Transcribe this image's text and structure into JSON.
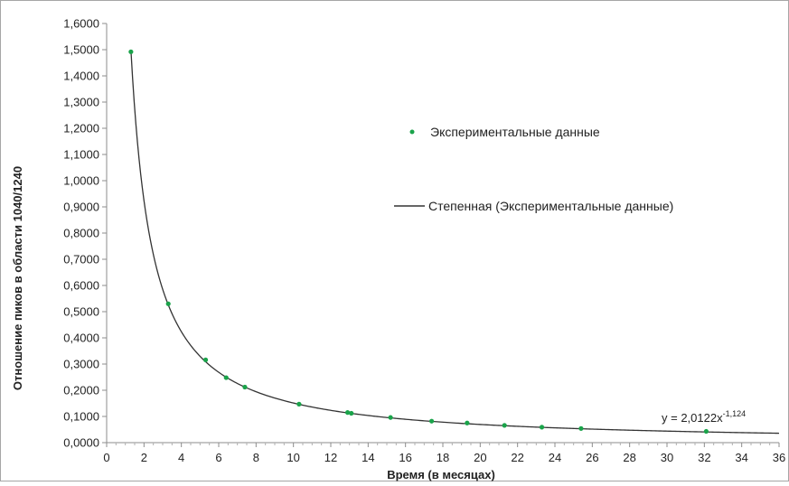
{
  "chart_data": {
    "type": "scatter",
    "title": "",
    "xlabel": "Время (в месяцах)",
    "ylabel": "Отношение пиков в области 1040/1240",
    "xlim": [
      0,
      36
    ],
    "ylim": [
      0,
      1.6
    ],
    "x_ticks": [
      "0",
      "2",
      "4",
      "6",
      "8",
      "10",
      "12",
      "14",
      "16",
      "18",
      "20",
      "22",
      "24",
      "26",
      "28",
      "30",
      "32",
      "34",
      "36"
    ],
    "y_ticks": [
      "0,0000",
      "0,1000",
      "0,2000",
      "0,3000",
      "0,4000",
      "0,5000",
      "0,6000",
      "0,7000",
      "0,8000",
      "0,9000",
      "1,0000",
      "1,1000",
      "1,2000",
      "1,3000",
      "1,4000",
      "1,5000",
      "1,6000"
    ],
    "grid": false,
    "legend_position": "right",
    "series": [
      {
        "name": "Экспериментальные данные",
        "kind": "points",
        "color": "#1aa34a",
        "x": [
          1.3,
          3.3,
          5.3,
          6.4,
          7.4,
          10.3,
          12.9,
          13.1,
          15.2,
          17.4,
          19.3,
          21.3,
          23.3,
          25.4,
          32.1
        ],
        "y": [
          1.492,
          0.53,
          0.316,
          0.248,
          0.212,
          0.147,
          0.115,
          0.112,
          0.096,
          0.082,
          0.075,
          0.066,
          0.059,
          0.054,
          0.043
        ]
      },
      {
        "name": "Степенная (Экспериментальные данные)",
        "kind": "trendline",
        "color": "#333333",
        "equation": {
          "a": 2.0122,
          "b": -1.124,
          "x_from": 1.3,
          "x_to": 36
        }
      }
    ],
    "annotation": {
      "prefix": "y = 2,0122x",
      "exponent": "-1,124"
    }
  }
}
